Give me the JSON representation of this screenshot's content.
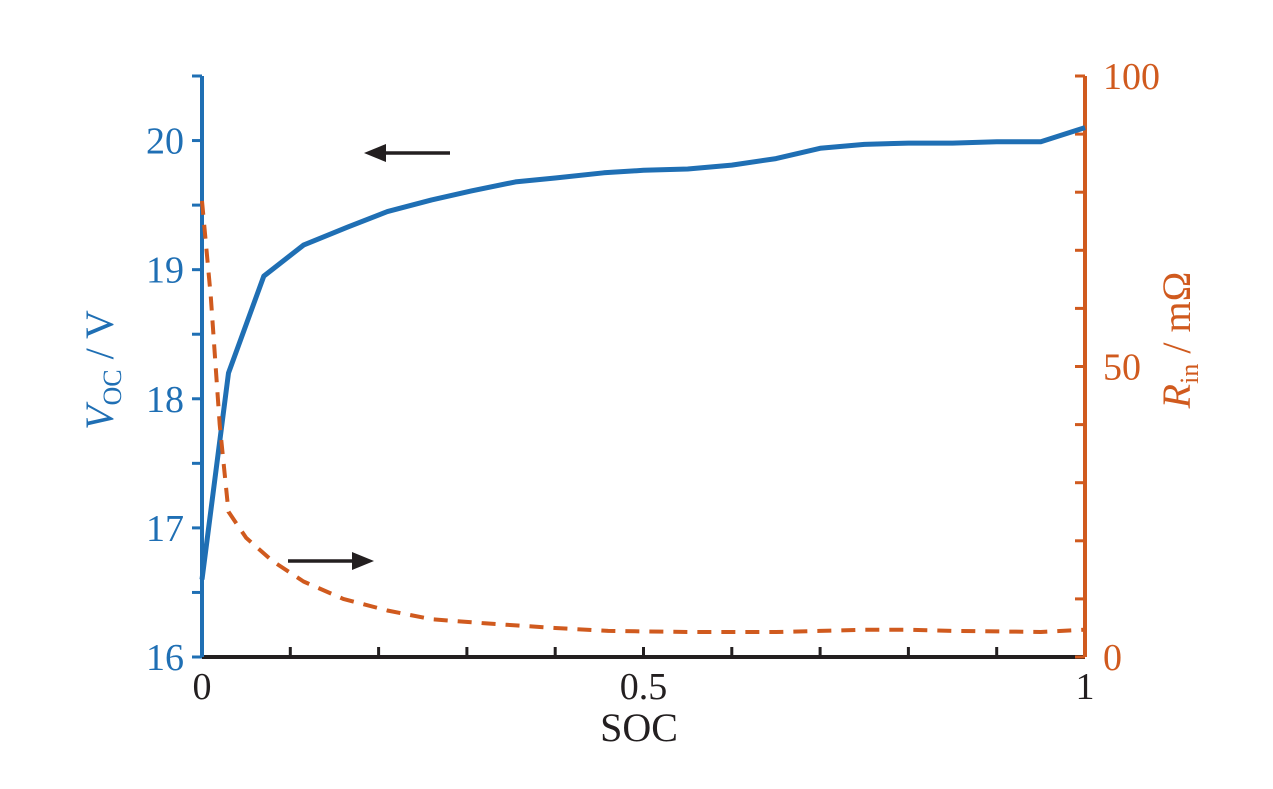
{
  "chart_data": {
    "type": "line",
    "title": "",
    "xlabel": "SOC",
    "xlim": [
      0,
      1
    ],
    "x_ticks": [
      0,
      0.1,
      0.2,
      0.3,
      0.4,
      0.5,
      0.6,
      0.7,
      0.8,
      0.9,
      1
    ],
    "x_tick_labels": [
      {
        "value": 0,
        "label": "0"
      },
      {
        "value": 0.5,
        "label": "0.5"
      },
      {
        "value": 1,
        "label": "1"
      }
    ],
    "y_left": {
      "label_main": "V",
      "label_sub": "OC",
      "label_unit": " / V",
      "lim": [
        16,
        20.5
      ],
      "ticks": [
        16,
        16.5,
        17,
        17.5,
        18,
        18.5,
        19,
        19.5,
        20,
        20.5
      ],
      "tick_labels": [
        {
          "value": 16,
          "label": "16"
        },
        {
          "value": 17,
          "label": "17"
        },
        {
          "value": 18,
          "label": "18"
        },
        {
          "value": 19,
          "label": "19"
        },
        {
          "value": 20,
          "label": "20"
        }
      ],
      "color": "#1f6fb4"
    },
    "y_right": {
      "label_main": "R",
      "label_sub": "in",
      "label_unit": " / mΩ",
      "lim": [
        0,
        100
      ],
      "ticks": [
        0,
        10,
        20,
        30,
        40,
        50,
        60,
        70,
        80,
        90,
        100
      ],
      "tick_labels": [
        {
          "value": 0,
          "label": "0"
        },
        {
          "value": 50,
          "label": "50"
        },
        {
          "value": 100,
          "label": "100"
        }
      ],
      "color": "#d05a1e"
    },
    "series": [
      {
        "axis": "left",
        "style": "solid",
        "color": "#1f6fb4",
        "x": [
          0,
          0.03,
          0.07,
          0.115,
          0.165,
          0.21,
          0.26,
          0.305,
          0.355,
          0.4,
          0.455,
          0.5,
          0.55,
          0.6,
          0.65,
          0.7,
          0.75,
          0.8,
          0.85,
          0.9,
          0.95,
          1.0
        ],
        "y": [
          16.6,
          18.2,
          18.95,
          19.19,
          19.33,
          19.45,
          19.54,
          19.61,
          19.68,
          19.71,
          19.75,
          19.77,
          19.78,
          19.81,
          19.86,
          19.94,
          19.97,
          19.98,
          19.98,
          19.99,
          19.99,
          20.1
        ]
      },
      {
        "axis": "right",
        "style": "dashed",
        "color": "#d05a1e",
        "x": [
          0,
          0.01,
          0.02,
          0.03,
          0.05,
          0.08,
          0.115,
          0.16,
          0.21,
          0.26,
          0.32,
          0.4,
          0.46,
          0.5,
          0.55,
          0.6,
          0.65,
          0.7,
          0.75,
          0.8,
          0.85,
          0.9,
          0.95,
          1.0
        ],
        "y": [
          78.5,
          62,
          40,
          25,
          20.5,
          16.5,
          13,
          10,
          8,
          6.5,
          5.8,
          5,
          4.5,
          4.4,
          4.3,
          4.3,
          4.3,
          4.5,
          4.7,
          4.7,
          4.5,
          4.4,
          4.3,
          4.7
        ]
      }
    ],
    "annotations": [
      {
        "type": "arrow",
        "direction": "left",
        "points_to_axis": "left"
      },
      {
        "type": "arrow",
        "direction": "right",
        "points_to_axis": "right"
      }
    ]
  }
}
